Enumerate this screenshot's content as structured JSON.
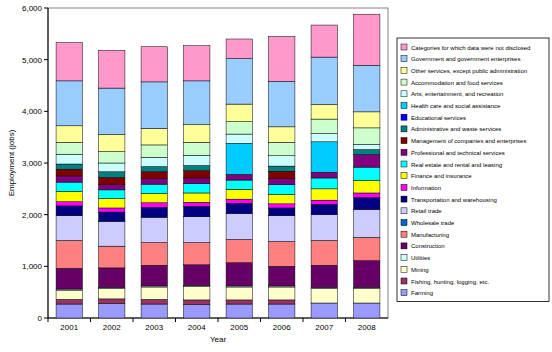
{
  "chart_data": {
    "type": "bar",
    "stacked": true,
    "grid": false,
    "legend": "right",
    "x_label": "Year",
    "y_label": "Employment (jobs)",
    "categories": [
      "2001",
      "2002",
      "2003",
      "2004",
      "2005",
      "2006",
      "2007",
      "2008"
    ],
    "ylim": [
      0,
      6000
    ],
    "yticks": [
      0,
      {
        "value": 1000,
        "label": "1,000"
      },
      {
        "value": 2000,
        "label": "2,000"
      },
      {
        "value": 3000,
        "label": "3,000"
      },
      {
        "value": 4000,
        "label": "4,000"
      },
      {
        "value": 5000,
        "label": "5,000"
      },
      {
        "value": 6000,
        "label": "6,000"
      }
    ],
    "series": [
      {
        "name": "Farming",
        "color": "#9999ff",
        "values": [
          270,
          280,
          270,
          260,
          270,
          270,
          290,
          290
        ]
      },
      {
        "name": "Fishing, hunting, logging, etc.",
        "color": "#993366",
        "values": [
          90,
          90,
          90,
          90,
          80,
          80,
          null,
          null
        ]
      },
      {
        "name": "Mining",
        "color": "#ffffcc",
        "values": [
          180,
          200,
          240,
          260,
          250,
          250,
          280,
          280
        ]
      },
      {
        "name": "Utilities",
        "color": "#ccffff",
        "values": [
          20,
          20,
          20,
          20,
          20,
          20,
          20,
          20
        ]
      },
      {
        "name": "Construction",
        "color": "#660066",
        "values": [
          400,
          380,
          400,
          400,
          450,
          380,
          430,
          520
        ]
      },
      {
        "name": "Manufacturing",
        "color": "#ff8080",
        "values": [
          540,
          420,
          440,
          430,
          450,
          480,
          480,
          450
        ]
      },
      {
        "name": "Wholesale trade",
        "color": "#0066cc",
        "values": [
          null,
          null,
          null,
          null,
          null,
          null,
          null,
          null
        ]
      },
      {
        "name": "Retail trade",
        "color": "#ccccff",
        "values": [
          480,
          480,
          490,
          500,
          500,
          500,
          500,
          540
        ]
      },
      {
        "name": "Transportation and warehousing",
        "color": "#000080",
        "values": [
          190,
          180,
          190,
          200,
          200,
          150,
          200,
          230
        ]
      },
      {
        "name": "Information",
        "color": "#ff00ff",
        "values": [
          80,
          80,
          90,
          80,
          80,
          80,
          80,
          90
        ]
      },
      {
        "name": "Finance and insurance",
        "color": "#ffff00",
        "values": [
          200,
          180,
          180,
          180,
          190,
          180,
          220,
          240
        ]
      },
      {
        "name": "Real estate and rental and leasing",
        "color": "#00ffff",
        "values": [
          180,
          170,
          180,
          180,
          180,
          190,
          210,
          260
        ]
      },
      {
        "name": "Professional and technical services",
        "color": "#800080",
        "values": [
          120,
          110,
          110,
          110,
          110,
          120,
          110,
          240
        ]
      },
      {
        "name": "Management of companies and enterprises",
        "color": "#800000",
        "values": [
          130,
          130,
          130,
          140,
          null,
          140,
          null,
          null
        ]
      },
      {
        "name": "Administrative and waste services",
        "color": "#008080",
        "values": [
          100,
          110,
          100,
          100,
          null,
          100,
          null,
          100
        ]
      },
      {
        "name": "Educational services",
        "color": "#0000ff",
        "values": [
          null,
          null,
          null,
          null,
          null,
          null,
          null,
          null
        ]
      },
      {
        "name": "Health care and social assistance",
        "color": "#00ccff",
        "values": [
          null,
          null,
          null,
          null,
          600,
          null,
          590,
          null
        ]
      },
      {
        "name": "Arts, entertainment, and recreation",
        "color": "#ccffff",
        "values": [
          190,
          170,
          180,
          200,
          180,
          200,
          160,
          100
        ]
      },
      {
        "name": "Accommodation and food services",
        "color": "#ccffcc",
        "values": [
          230,
          220,
          240,
          250,
          240,
          260,
          280,
          320
        ]
      },
      {
        "name": "Other services, except public administration",
        "color": "#ffff99",
        "values": [
          320,
          330,
          320,
          340,
          340,
          300,
          280,
          310
        ]
      },
      {
        "name": "Government and government enterprises",
        "color": "#99ccff",
        "values": [
          870,
          900,
          900,
          850,
          880,
          880,
          920,
          900
        ]
      },
      {
        "name": "Categories for which data were not disclosed",
        "color": "#ff99cc",
        "values": [
          740,
          730,
          680,
          680,
          380,
          870,
          620,
          990
        ]
      }
    ]
  }
}
